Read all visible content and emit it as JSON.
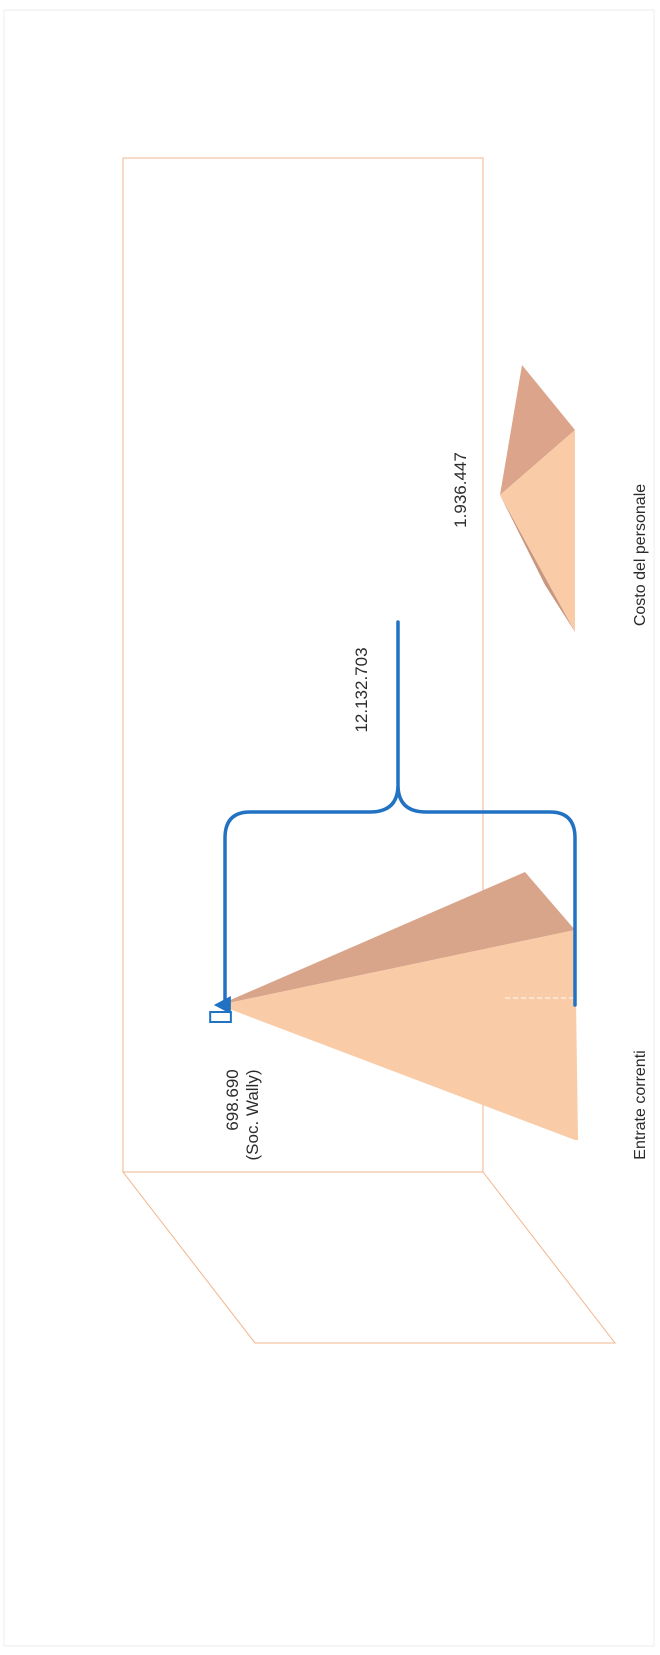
{
  "chart_data": {
    "type": "bar",
    "title": "",
    "xlabel": "",
    "ylabel": "",
    "categories": [
      "Entrate correnti",
      "Costo del personale"
    ],
    "values": [
      12132703,
      1936447
    ],
    "value_labels": [
      "12.132.703",
      "1.936.447"
    ],
    "grid": false,
    "annotations": [
      {
        "category": "Entrate correnti",
        "line1": "698.690",
        "line2": "(Soc. Wally)",
        "value": 698690
      }
    ],
    "colors": {
      "bar_light": "#f9cba6",
      "bar_dark": "#d8a48a",
      "frame": "#f3b48e",
      "bracket": "#2272c3",
      "callout": "#2272c3"
    }
  }
}
